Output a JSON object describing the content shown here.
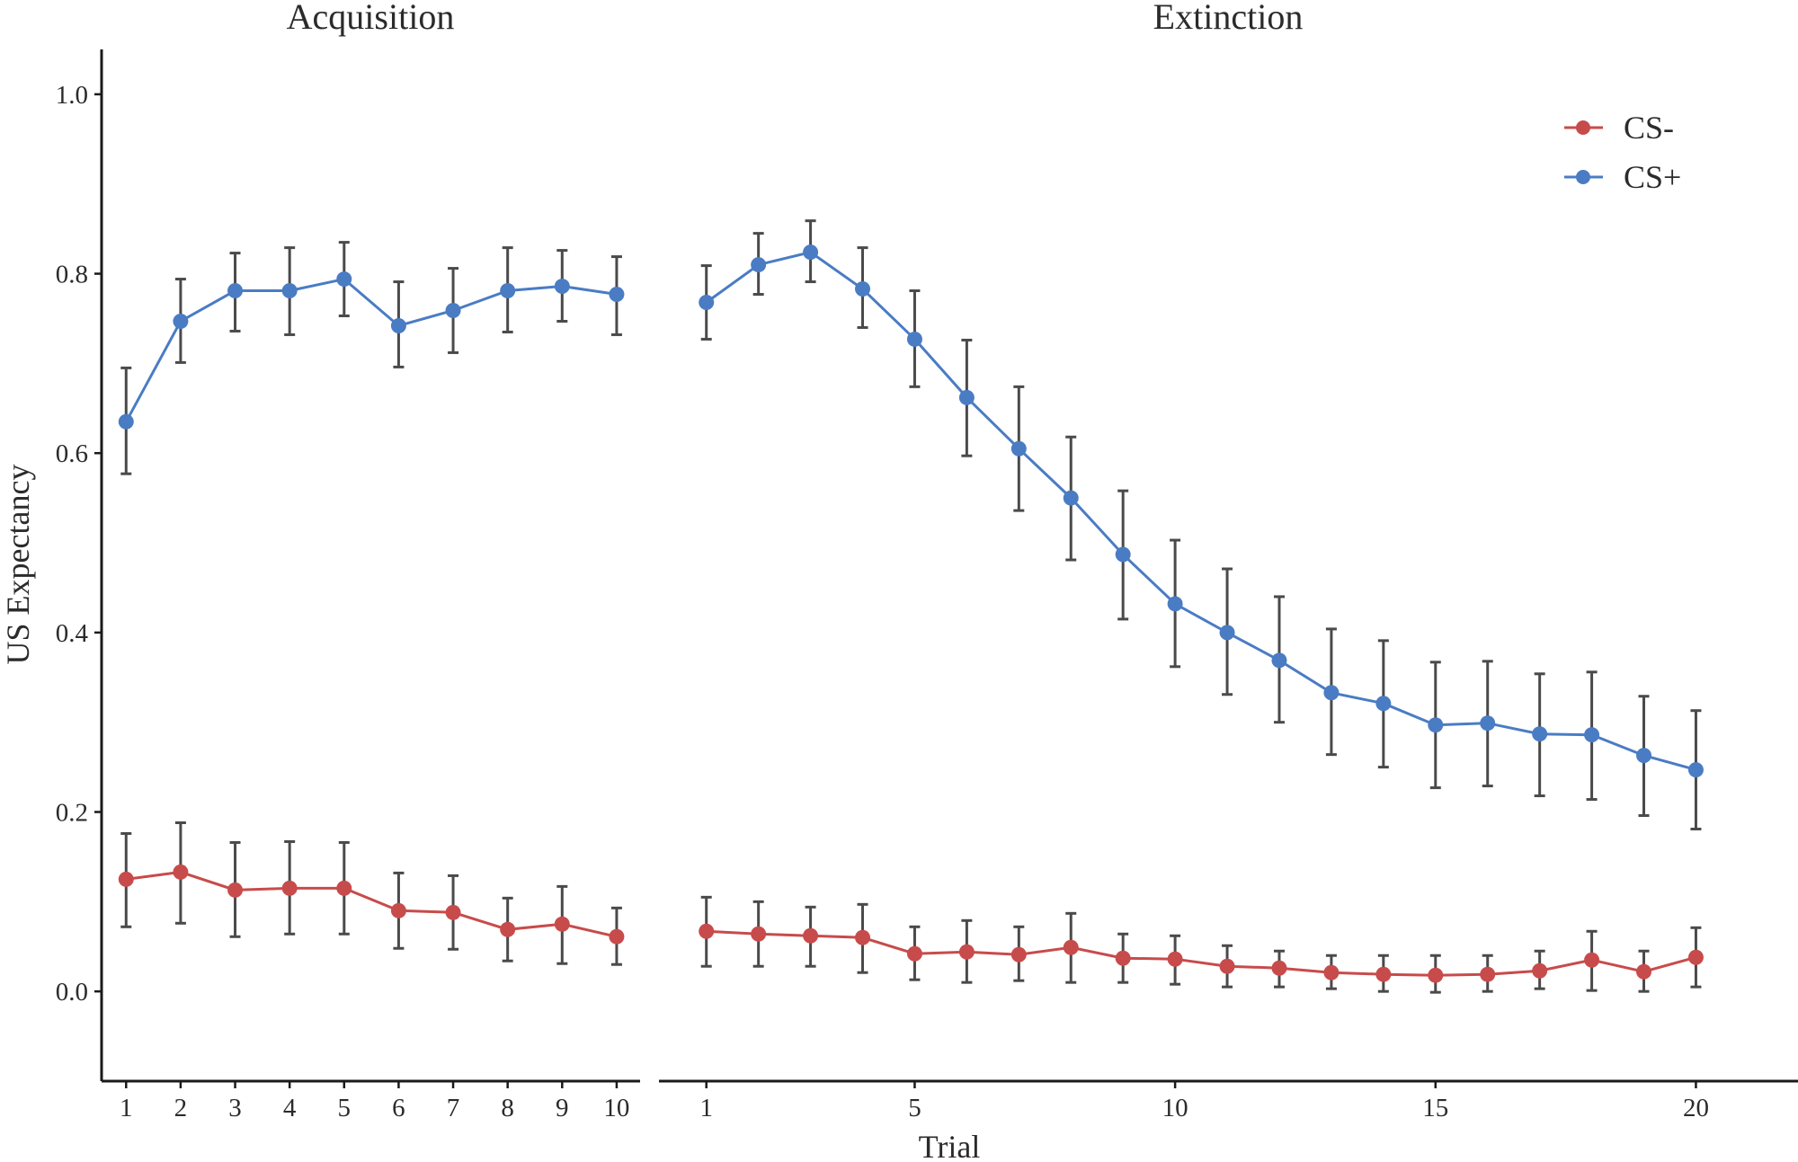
{
  "chart_data": {
    "type": "line",
    "ylabel": "US Expectancy",
    "xlabel": "Trial",
    "ylim": [
      -0.1,
      1.05
    ],
    "yticks": [
      0.0,
      0.2,
      0.4,
      0.6,
      0.8,
      1.0
    ],
    "ytick_labels": [
      "0.0",
      "0.2",
      "0.4",
      "0.6",
      "0.8",
      "1.0"
    ],
    "grid": false,
    "legend": {
      "position": "top-right",
      "entries": [
        {
          "name": "CS-",
          "color": "#C84B4B"
        },
        {
          "name": "CS+",
          "color": "#4A7CC4"
        }
      ]
    },
    "error_bar_color": "#4a4a4a",
    "panels": [
      {
        "title": "Acquisition",
        "xlim": [
          0.55,
          10.43
        ],
        "xticks": [
          1,
          2,
          3,
          4,
          5,
          6,
          7,
          8,
          9,
          10
        ],
        "xtick_labels": [
          "1",
          "2",
          "3",
          "4",
          "5",
          "6",
          "7",
          "8",
          "9",
          "10"
        ],
        "x": [
          1,
          2,
          3,
          4,
          5,
          6,
          7,
          8,
          9,
          10
        ],
        "series": [
          {
            "name": "CS-",
            "color": "#C84B4B",
            "values": [
              0.125,
              0.133,
              0.113,
              0.115,
              0.115,
              0.09,
              0.088,
              0.069,
              0.075,
              0.061
            ],
            "upper": [
              0.176,
              0.188,
              0.166,
              0.167,
              0.166,
              0.132,
              0.129,
              0.104,
              0.117,
              0.093
            ],
            "lower": [
              0.072,
              0.076,
              0.061,
              0.064,
              0.064,
              0.048,
              0.047,
              0.034,
              0.031,
              0.03
            ]
          },
          {
            "name": "CS+",
            "color": "#4A7CC4",
            "values": [
              0.635,
              0.747,
              0.781,
              0.781,
              0.794,
              0.742,
              0.759,
              0.781,
              0.786,
              0.777
            ],
            "upper": [
              0.695,
              0.794,
              0.823,
              0.829,
              0.835,
              0.791,
              0.806,
              0.829,
              0.826,
              0.819
            ],
            "lower": [
              0.577,
              0.701,
              0.736,
              0.732,
              0.753,
              0.696,
              0.712,
              0.735,
              0.747,
              0.732
            ]
          }
        ]
      },
      {
        "title": "Extinction",
        "xlim": [
          0.09,
          21.96
        ],
        "xticks": [
          1,
          5,
          10,
          15,
          20
        ],
        "xtick_labels": [
          "1",
          "5",
          "10",
          "15",
          "20"
        ],
        "x": [
          1,
          2,
          3,
          4,
          5,
          6,
          7,
          8,
          9,
          10,
          11,
          12,
          13,
          14,
          15,
          16,
          17,
          18,
          19,
          20
        ],
        "series": [
          {
            "name": "CS-",
            "color": "#C84B4B",
            "values": [
              0.067,
              0.064,
              0.062,
              0.06,
              0.042,
              0.044,
              0.041,
              0.049,
              0.037,
              0.036,
              0.028,
              0.026,
              0.021,
              0.019,
              0.018,
              0.019,
              0.023,
              0.035,
              0.022,
              0.038
            ],
            "upper": [
              0.105,
              0.1,
              0.094,
              0.097,
              0.072,
              0.079,
              0.072,
              0.087,
              0.064,
              0.062,
              0.051,
              0.045,
              0.04,
              0.04,
              0.04,
              0.04,
              0.045,
              0.067,
              0.045,
              0.071
            ],
            "lower": [
              0.028,
              0.028,
              0.028,
              0.021,
              0.013,
              0.01,
              0.012,
              0.01,
              0.01,
              0.008,
              0.005,
              0.005,
              0.003,
              0.0,
              -0.001,
              0.0,
              0.003,
              0.001,
              0.0,
              0.005
            ]
          },
          {
            "name": "CS+",
            "color": "#4A7CC4",
            "values": [
              0.768,
              0.81,
              0.824,
              0.783,
              0.727,
              0.662,
              0.605,
              0.55,
              0.487,
              0.432,
              0.4,
              0.369,
              0.333,
              0.321,
              0.297,
              0.299,
              0.287,
              0.286,
              0.263,
              0.247
            ],
            "upper": [
              0.809,
              0.845,
              0.859,
              0.829,
              0.781,
              0.726,
              0.674,
              0.618,
              0.558,
              0.503,
              0.471,
              0.44,
              0.404,
              0.391,
              0.367,
              0.368,
              0.354,
              0.356,
              0.329,
              0.313
            ],
            "lower": [
              0.727,
              0.777,
              0.791,
              0.74,
              0.674,
              0.597,
              0.536,
              0.481,
              0.415,
              0.362,
              0.331,
              0.3,
              0.264,
              0.25,
              0.227,
              0.229,
              0.218,
              0.214,
              0.196,
              0.181
            ]
          }
        ]
      }
    ]
  }
}
